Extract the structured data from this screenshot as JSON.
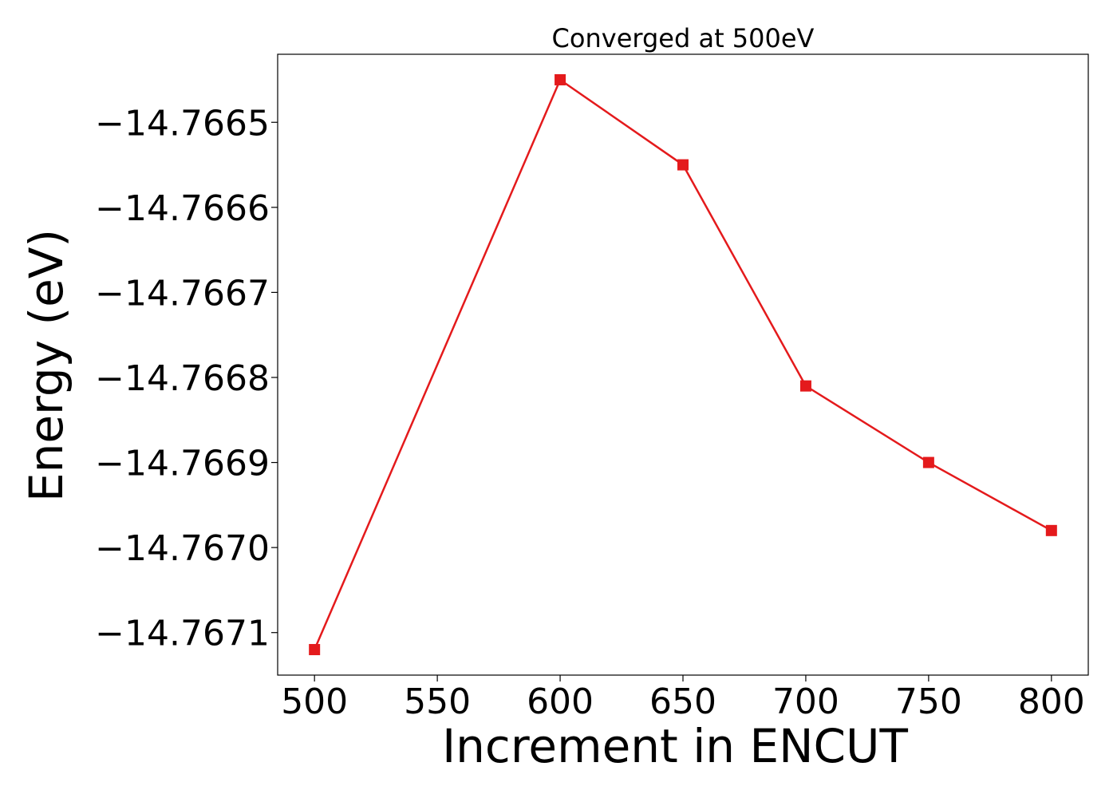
{
  "chart_data": {
    "type": "line",
    "title": "Converged at 500eV",
    "xlabel": "Increment in ENCUT",
    "ylabel": "Energy (eV)",
    "x": [
      500,
      600,
      650,
      700,
      750,
      800
    ],
    "series": [
      {
        "values": [
          -14.76712,
          -14.76645,
          -14.76655,
          -14.76681,
          -14.7669,
          -14.76698
        ],
        "color": "#e41a1c",
        "marker": "square"
      }
    ],
    "xlim": [
      485,
      815
    ],
    "ylim": [
      -14.76715,
      -14.76642
    ],
    "xticks": [
      500,
      550,
      600,
      650,
      700,
      750,
      800
    ],
    "xtick_labels": [
      "500",
      "550",
      "600",
      "650",
      "700",
      "750",
      "800"
    ],
    "yticks": [
      -14.7665,
      -14.7666,
      -14.7667,
      -14.7668,
      -14.7669,
      -14.767,
      -14.7671
    ],
    "ytick_labels": [
      "−14.7665",
      "−14.7666",
      "−14.7667",
      "−14.7668",
      "−14.7669",
      "−14.7670",
      "−14.7671"
    ],
    "grid": false,
    "legend": "none"
  }
}
